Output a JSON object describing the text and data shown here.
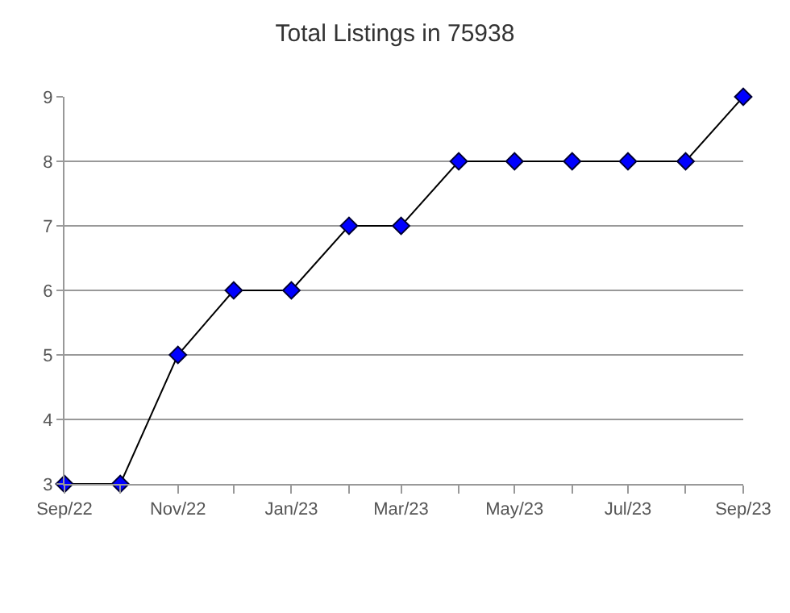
{
  "chart_data": {
    "type": "line",
    "title": "Total Listings in 75938",
    "x": [
      "2022-09-01",
      "2022-10-01",
      "2022-11-01",
      "2022-12-01",
      "2023-01-01",
      "2023-02-01",
      "2023-03-01",
      "2023-04-01",
      "2023-05-01",
      "2023-06-01",
      "2023-07-01",
      "2023-08-01",
      "2023-09-01"
    ],
    "series": [
      {
        "color": "#0000ff",
        "values": [
          3,
          3,
          5,
          6,
          6,
          7,
          7,
          8,
          8,
          8,
          8,
          8,
          9
        ]
      }
    ],
    "xlim": [
      "2022-09-01",
      "2023-09-01"
    ],
    "xticks": [
      {
        "value": "2022-09-01",
        "label": "Sep/22"
      },
      {
        "value": "2022-10-01",
        "label": null
      },
      {
        "value": "2022-11-01",
        "label": "Nov/22"
      },
      {
        "value": "2022-12-01",
        "label": null
      },
      {
        "value": "2023-01-01",
        "label": "Jan/23"
      },
      {
        "value": "2023-02-01",
        "label": null
      },
      {
        "value": "2023-03-01",
        "label": "Mar/23"
      },
      {
        "value": "2023-04-01",
        "label": null
      },
      {
        "value": "2023-05-01",
        "label": "May/23"
      },
      {
        "value": "2023-06-01",
        "label": null
      },
      {
        "value": "2023-07-01",
        "label": "Jul/23"
      },
      {
        "value": "2023-08-01",
        "label": null
      },
      {
        "value": "2023-09-01",
        "label": "Sep/23"
      }
    ],
    "ylim": [
      3,
      9
    ],
    "yticks": [
      3,
      4,
      5,
      6,
      7,
      8,
      9
    ],
    "grid": "y",
    "marker": "diamond",
    "line_style": "solid"
  }
}
